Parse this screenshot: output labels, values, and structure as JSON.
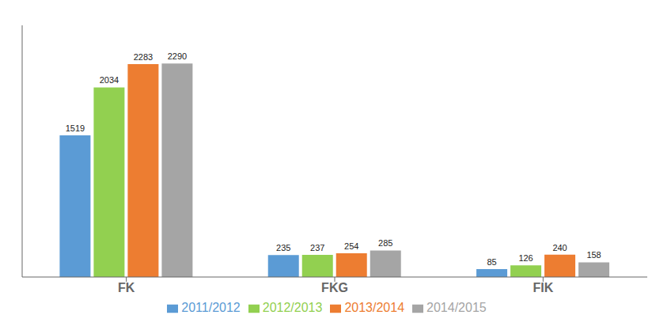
{
  "chart_data": {
    "type": "bar",
    "categories": [
      "FK",
      "FKG",
      "FIK"
    ],
    "series": [
      {
        "name": "2011/2012",
        "color": "#5B9BD5",
        "values": [
          1519,
          235,
          85
        ]
      },
      {
        "name": "2012/2013",
        "color": "#92D050",
        "values": [
          2034,
          237,
          126
        ]
      },
      {
        "name": "2013/2014",
        "color": "#ED7D31",
        "values": [
          2283,
          254,
          240
        ]
      },
      {
        "name": "2014/2015",
        "color": "#A5A5A5",
        "values": [
          2290,
          285,
          158
        ]
      }
    ],
    "ylim": [
      0,
      2700
    ],
    "data_labels": true,
    "tick_labels": "x",
    "legend": "bottom",
    "grid": false
  }
}
